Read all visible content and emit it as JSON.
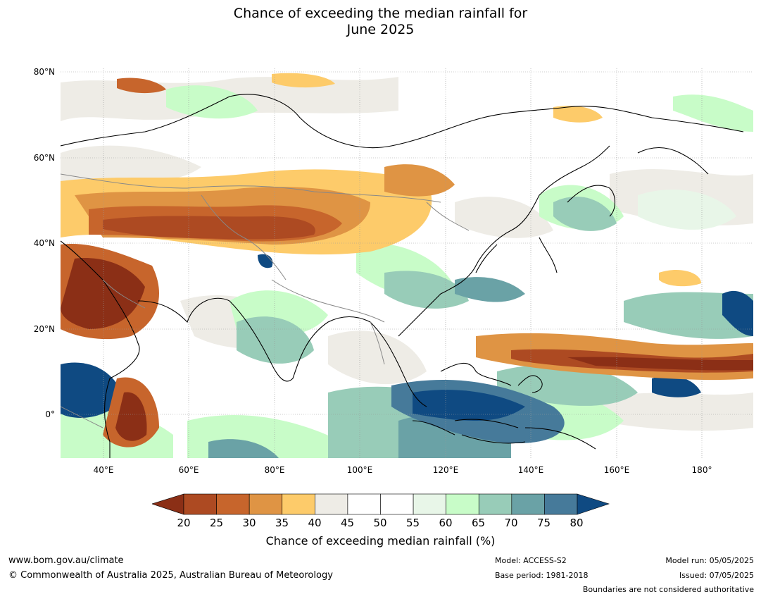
{
  "title": {
    "line1": "Chance of exceeding the median rainfall for",
    "line2": "June 2025"
  },
  "map": {
    "latitude_labels": [
      "80°N",
      "60°N",
      "40°N",
      "20°N",
      "0°"
    ],
    "latitudes": [
      80,
      60,
      40,
      20,
      0
    ],
    "longitude_labels": [
      "40°E",
      "60°E",
      "80°E",
      "100°E",
      "120°E",
      "140°E",
      "160°E",
      "180°"
    ],
    "longitudes": [
      40,
      60,
      80,
      100,
      120,
      140,
      160,
      180
    ],
    "extent": {
      "lon_min": 30,
      "lon_max": 192,
      "lat_min": -10,
      "lat_max": 81
    }
  },
  "colorbar": {
    "ticks": [
      "20",
      "25",
      "30",
      "35",
      "40",
      "45",
      "50",
      "55",
      "60",
      "65",
      "70",
      "75",
      "80"
    ],
    "under_color": "#8b2f16",
    "over_color": "#0f4a82",
    "colors": [
      "#ad4a22",
      "#c7652c",
      "#df9444",
      "#fdcb6a",
      "#eeece6",
      "#ffffff",
      "#ffffff",
      "#e8f6e8",
      "#c8fcc8",
      "#98ccb8",
      "#6aa2a6",
      "#467a9a"
    ],
    "label": "Chance of exceeding median rainfall (%)"
  },
  "footer": {
    "website": "www.bom.gov.au/climate",
    "copyright": "© Commonwealth of Australia 2025, Australian Bureau of Meteorology",
    "model": "Model: ACCESS-S2",
    "base_period": "Base period: 1981-2018",
    "model_run": "Model run: 05/05/2025",
    "issued": "Issued: 07/05/2025",
    "disclaimer": "Boundaries are not considered authoritative"
  }
}
